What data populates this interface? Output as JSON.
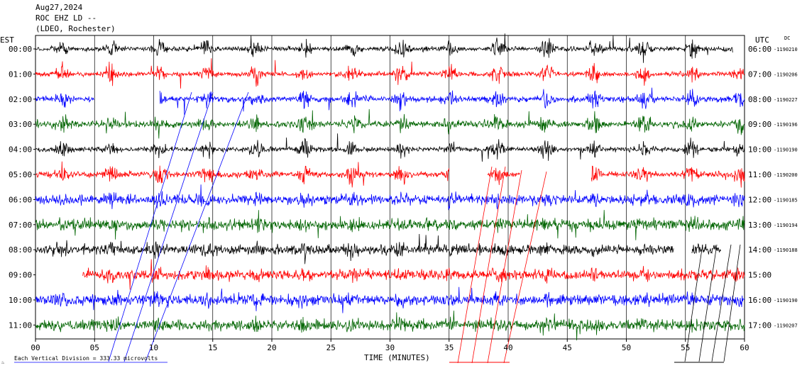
{
  "header": {
    "date": "Aug27,2024",
    "station": "ROC EHZ LD --",
    "network": "(LDEO, Rochester)"
  },
  "labels": {
    "left_zone": "EST",
    "right_zone": "UTC",
    "dc": "DC",
    "xlabel": "TIME (MINUTES)",
    "scale_note": "Each Vertical Division = 333.33 microvolts",
    "logo_char": "♨"
  },
  "chart_data": {
    "type": "line",
    "xlabel": "TIME (MINUTES)",
    "xlim": [
      0,
      60
    ],
    "xticks": [
      "00",
      "05",
      "10",
      "15",
      "20",
      "25",
      "30",
      "35",
      "40",
      "45",
      "50",
      "55",
      "60"
    ],
    "rows": [
      {
        "est": "00:00",
        "utc": "06:00",
        "dc": "-1190210",
        "color": "#000000",
        "start": 0,
        "end": 59,
        "burstiness": 0.9
      },
      {
        "est": "01:00",
        "utc": "07:00",
        "dc": "-1190206",
        "color": "#ff0000",
        "start": 0,
        "end": 60,
        "burstiness": 0.9
      },
      {
        "est": "02:00",
        "utc": "08:00",
        "dc": "-1190227",
        "color": "#0000ff",
        "start": 0,
        "end": 60,
        "burstiness": 0.8,
        "gaps": [
          [
            5,
            10.5
          ]
        ]
      },
      {
        "est": "03:00",
        "utc": "09:00",
        "dc": "-1190196",
        "color": "#006400",
        "start": 0,
        "end": 60,
        "burstiness": 0.7
      },
      {
        "est": "04:00",
        "utc": "10:00",
        "dc": "-1190190",
        "color": "#000000",
        "start": 0,
        "end": 60,
        "burstiness": 0.9
      },
      {
        "est": "05:00",
        "utc": "11:00",
        "dc": "-1190200",
        "color": "#ff0000",
        "start": 0,
        "end": 60,
        "burstiness": 0.8,
        "gaps": [
          [
            35,
            38.2
          ],
          [
            41,
            47
          ]
        ]
      },
      {
        "est": "06:00",
        "utc": "12:00",
        "dc": "-1190185",
        "color": "#0000ff",
        "start": 0,
        "end": 60,
        "burstiness": 0.4
      },
      {
        "est": "07:00",
        "utc": "13:00",
        "dc": "-1190194",
        "color": "#006400",
        "start": 0,
        "end": 60,
        "burstiness": 0.3
      },
      {
        "est": "08:00",
        "utc": "14:00",
        "dc": "-1190188",
        "color": "#000000",
        "start": 0,
        "end": 58,
        "burstiness": 0.4,
        "gaps": [
          [
            54,
            55.5
          ]
        ]
      },
      {
        "est": "09:00",
        "utc": "15:00",
        "dc": "",
        "color": "#ff0000",
        "start": 4,
        "end": 60,
        "burstiness": 0.4
      },
      {
        "est": "10:00",
        "utc": "16:00",
        "dc": "-1190190",
        "color": "#0000ff",
        "start": 0,
        "end": 60,
        "burstiness": 0.3
      },
      {
        "est": "11:00",
        "utc": "17:00",
        "dc": "-1190207",
        "color": "#006400",
        "start": 0,
        "end": 60,
        "burstiness": 0.3
      }
    ]
  }
}
